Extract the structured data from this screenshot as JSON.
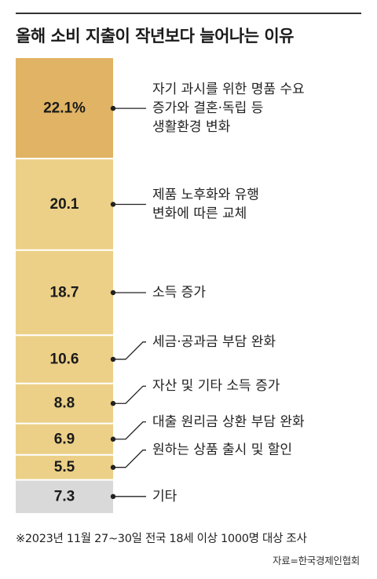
{
  "title": "올해 소비 지출이 작년보다 늘어나는 이유",
  "note": "※2023년 11월 27~30일 전국 18세 이상 1000명 대상 조사",
  "source": "자료=한국경제인협회",
  "colors": {
    "bar_dark": "#e0b464",
    "bar_light": "#ecd088",
    "bar_other": "#d9d9d9",
    "separator": "#ffffff",
    "line": "#222222"
  },
  "chart_data": {
    "type": "bar",
    "orientation": "stacked-vertical",
    "unit": "%",
    "categories": [
      "자기 과시를 위한 명품 수요 증가와 결혼·독립 등 생활환경 변화",
      "제품 노후화와 유행 변화에 따른 교체",
      "소득 증가",
      "세금·공과금 부담 완화",
      "자산 및 기타 소득 증가",
      "대출 원리금 상환 부담 완화",
      "원하는 상품 출시 및 할인",
      "기타"
    ],
    "values": [
      22.1,
      20.1,
      18.7,
      10.6,
      8.8,
      6.9,
      5.5,
      7.3
    ],
    "value_labels": [
      "22.1%",
      "20.1",
      "18.7",
      "10.6",
      "8.8",
      "6.9",
      "5.5",
      "7.3"
    ],
    "label_lines": [
      [
        "자기 과시를 위한 명품 수요",
        "증가와 결혼·독립 등",
        "생활환경 변화"
      ],
      [
        "제품 노후화와 유행",
        "변화에 따른 교체"
      ],
      [
        "소득 증가"
      ],
      [
        "세금·공과금 부담 완화"
      ],
      [
        "자산 및 기타 소득 증가"
      ],
      [
        "대출 원리금 상환 부담 완화"
      ],
      [
        "원하는 상품 출시 및 할인"
      ],
      [
        "기타"
      ]
    ]
  }
}
